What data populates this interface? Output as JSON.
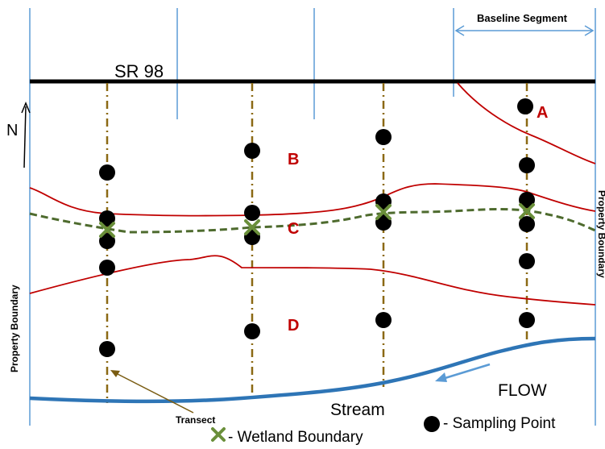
{
  "labels": {
    "road": "SR 98",
    "baseline": "Baseline Segment",
    "north": "N",
    "zone_a": "A",
    "zone_b": "B",
    "zone_c": "C",
    "zone_d": "D",
    "property_left": "Property Boundary",
    "property_right": "Property Boundary",
    "stream": "Stream",
    "flow": "FLOW",
    "transect": "Transect",
    "legend_sampling": "- Sampling Point",
    "legend_wetland": "- Wetland Boundary"
  },
  "colors": {
    "road": "#000000",
    "property_lines": "#5b9bd5",
    "stream": "#2e75b6",
    "zone_boundaries": "#c00000",
    "zone_labels": "#c00000",
    "wetland_boundary": "#4e6b2e",
    "wetland_marker": "#6a8f3a",
    "transects": "#8b6914",
    "sampling_points": "#000000",
    "flow_arrow": "#5b9bd5",
    "transect_pointer": "#7a5c12"
  },
  "icons": {
    "sampling_point": "filled-black-circle",
    "wetland_marker": "green-x",
    "north_arrow": "arrow-up"
  }
}
